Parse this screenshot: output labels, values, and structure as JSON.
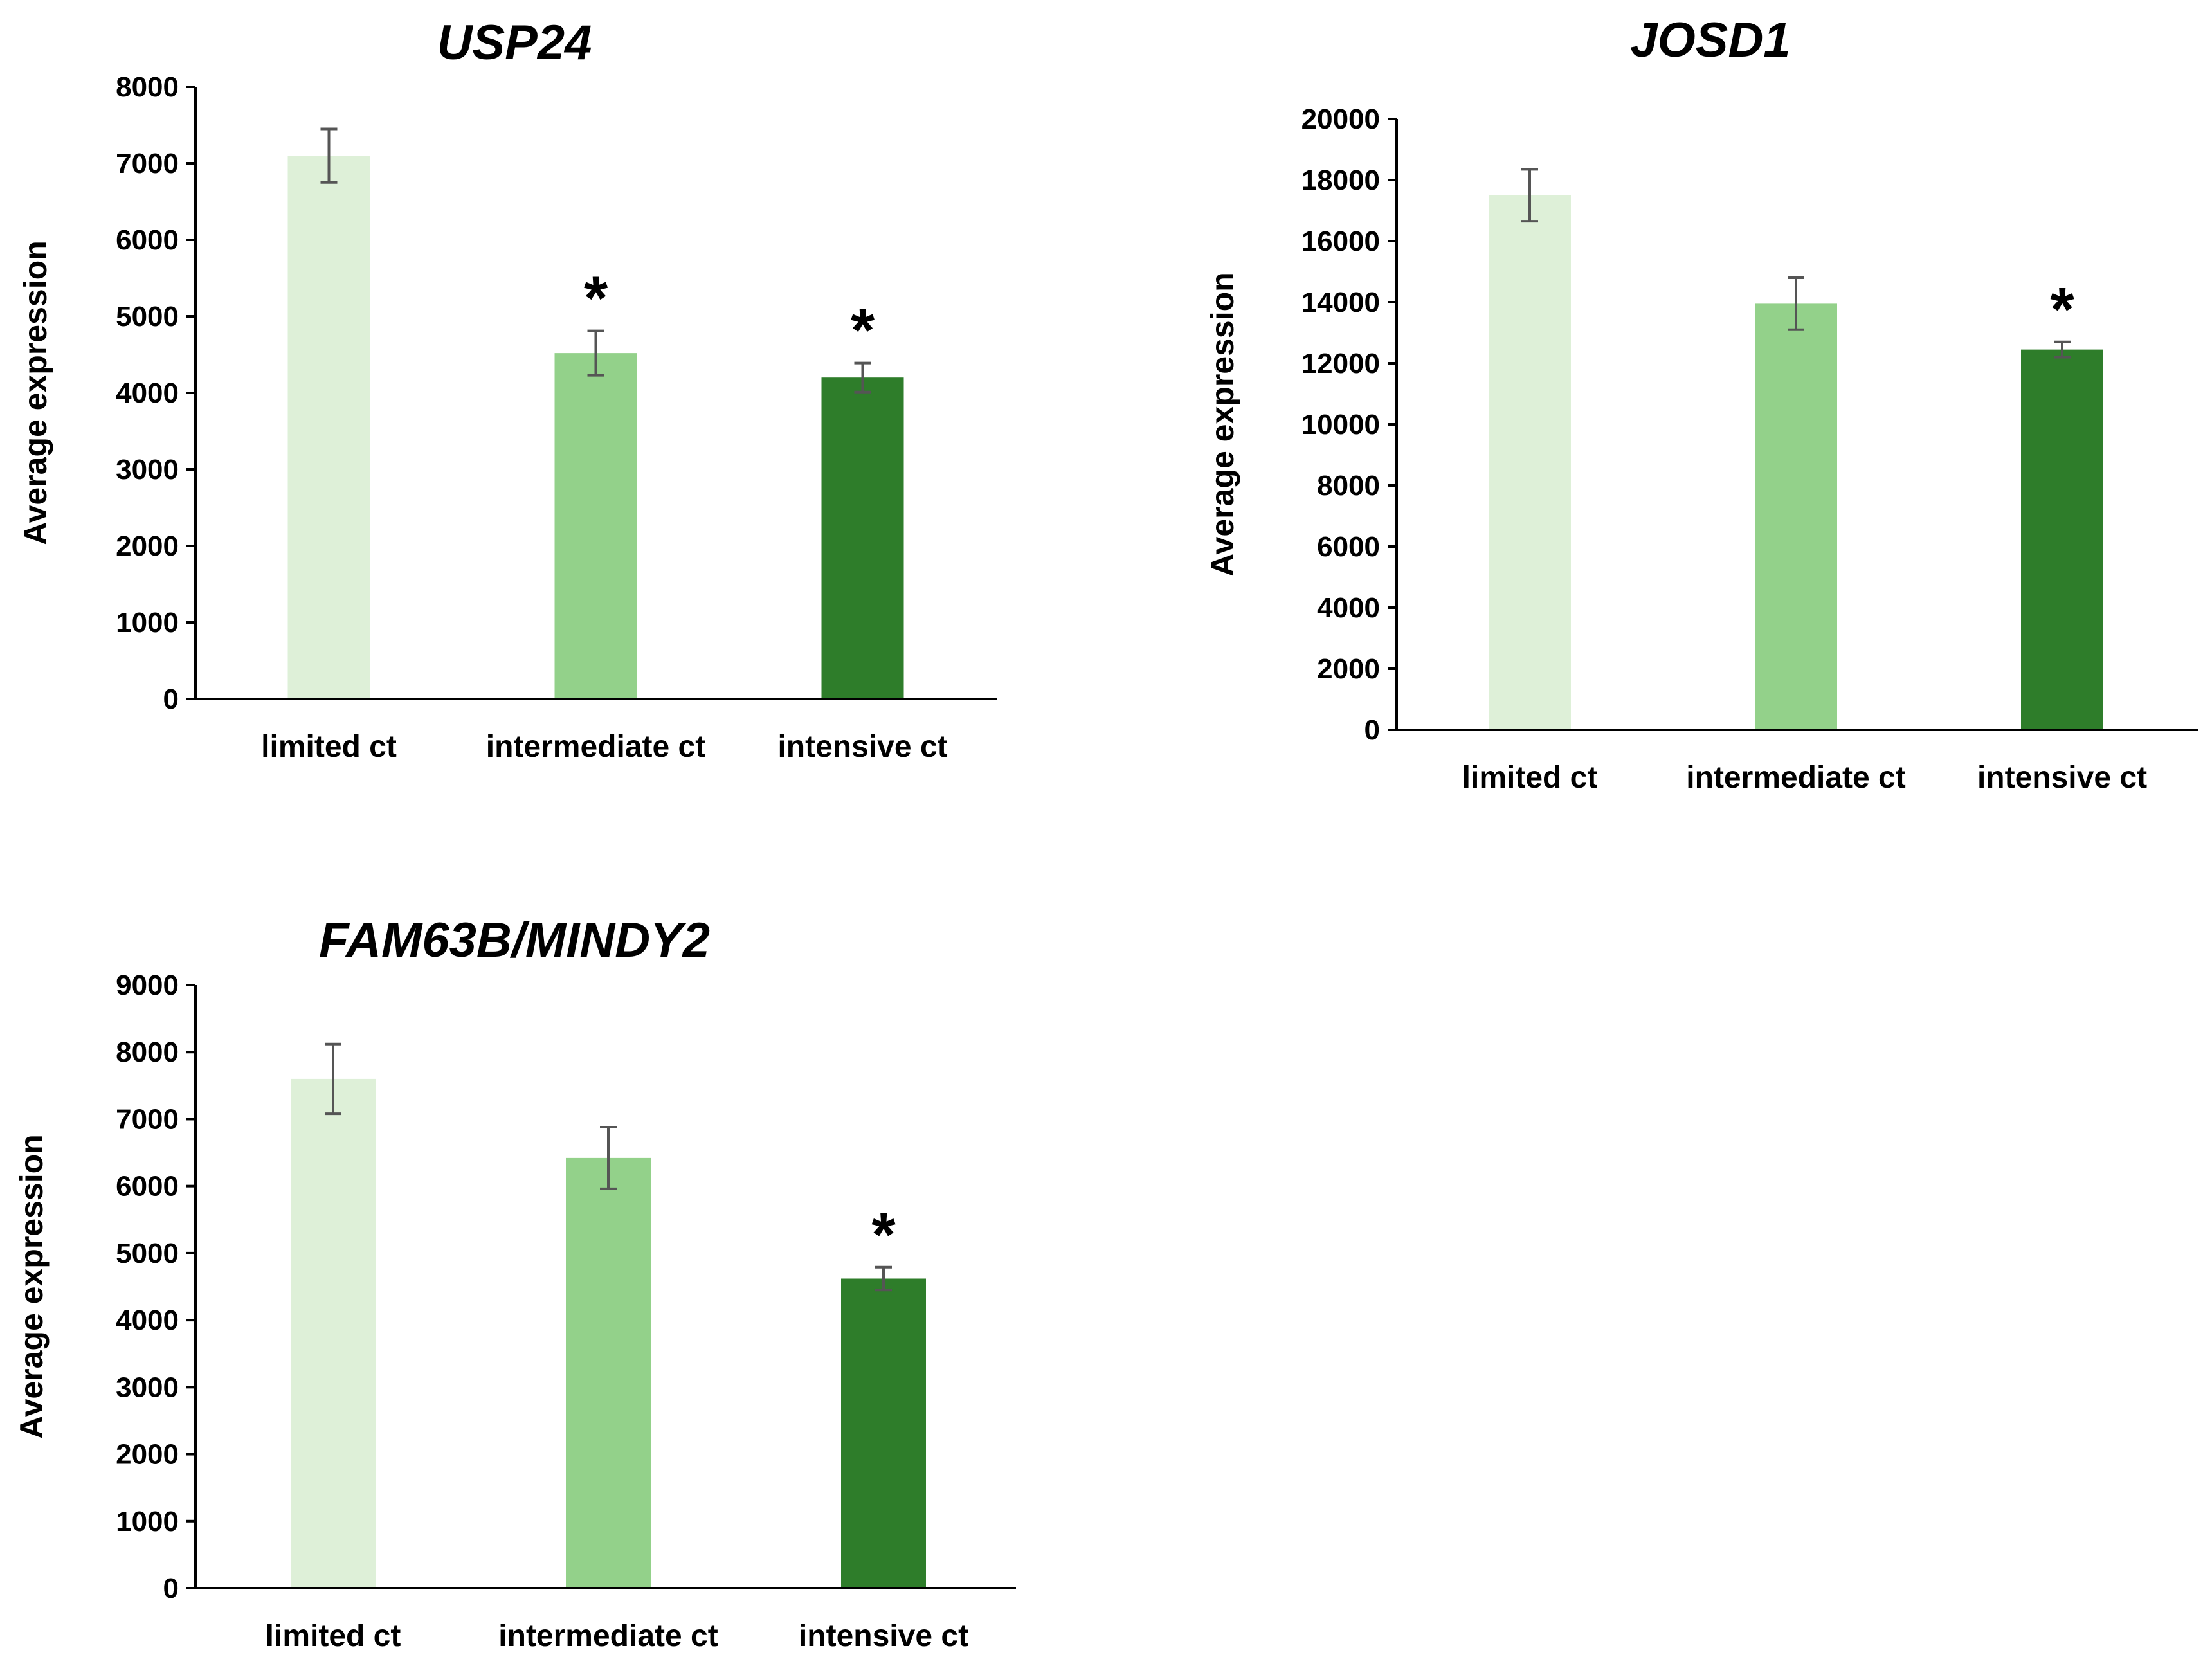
{
  "colors": {
    "limited": "#def0d8",
    "intermediate": "#93d18a",
    "intensive": "#2e7d2a",
    "error": "#555555",
    "axis": "#000000"
  },
  "chart_data": [
    {
      "type": "bar",
      "title": "USP24",
      "xlabel": "",
      "ylabel": "Average expression",
      "categories": [
        "limited ct",
        "intermediate ct",
        "intensive ct"
      ],
      "values": [
        7100,
        4520,
        4200
      ],
      "errors": [
        350,
        290,
        190
      ],
      "significance": [
        "",
        "*",
        "*"
      ],
      "ylim": [
        0,
        8000
      ],
      "yticks": [
        0,
        1000,
        2000,
        3000,
        4000,
        5000,
        6000,
        7000,
        8000
      ],
      "ytick_labels": [
        "0",
        "1000",
        "2000",
        "3000",
        "4000",
        "5000",
        "6000",
        "7000",
        "8000"
      ],
      "grid": false,
      "legend": "none"
    },
    {
      "type": "bar",
      "title": "JOSD1",
      "xlabel": "",
      "ylabel": "Average expression",
      "categories": [
        "limited ct",
        "intermediate ct",
        "intensive ct"
      ],
      "values": [
        17500,
        13950,
        12450
      ],
      "errors": [
        850,
        850,
        250
      ],
      "significance": [
        "",
        "",
        "*"
      ],
      "ylim": [
        0,
        20000
      ],
      "yticks": [
        0,
        2000,
        4000,
        6000,
        8000,
        10000,
        12000,
        14000,
        16000,
        18000,
        20000
      ],
      "ytick_labels": [
        "0",
        "2000",
        "4000",
        "6000",
        "8000",
        "10000",
        "12000",
        "14000",
        "16000",
        "18000",
        "20000"
      ],
      "grid": false,
      "legend": "none"
    },
    {
      "type": "bar",
      "title": "FAM63B/MINDY2",
      "xlabel": "",
      "ylabel": "Average expression",
      "categories": [
        "limited ct",
        "intermediate ct",
        "intensive ct"
      ],
      "values": [
        7600,
        6420,
        4620
      ],
      "errors": [
        520,
        460,
        170
      ],
      "significance": [
        "",
        "",
        "*"
      ],
      "ylim": [
        0,
        9000
      ],
      "yticks": [
        0,
        1000,
        2000,
        3000,
        4000,
        5000,
        6000,
        7000,
        8000,
        9000
      ],
      "ytick_labels": [
        "0",
        "1000",
        "2000",
        "3000",
        "4000",
        "5000",
        "6000",
        "7000",
        "8000",
        "9000"
      ],
      "grid": false,
      "legend": "none"
    }
  ]
}
